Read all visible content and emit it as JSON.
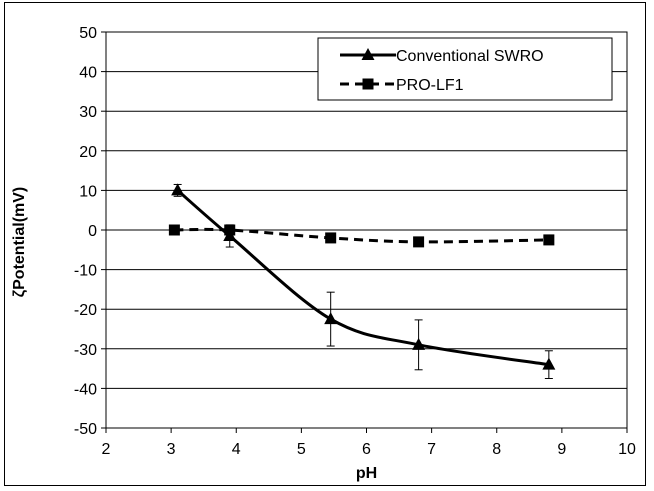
{
  "chart_data": {
    "type": "line",
    "xlabel": "pH",
    "ylabel": "ζPotential(mV)",
    "xlim": [
      2,
      10
    ],
    "ylim": [
      -50,
      50
    ],
    "xticks": [
      2,
      3,
      4,
      5,
      6,
      7,
      8,
      9,
      10
    ],
    "yticks": [
      50,
      40,
      30,
      20,
      10,
      0,
      -10,
      -20,
      -30,
      -40,
      -50
    ],
    "grid": "horizontal",
    "legend_position": "top-right",
    "series": [
      {
        "name": "Conventional SWRO",
        "marker": "triangle",
        "line": "solid",
        "color": "#000000",
        "x": [
          3.1,
          3.9,
          5.45,
          6.8,
          8.8
        ],
        "y": [
          10,
          -1.5,
          -22.5,
          -29,
          -34
        ],
        "error": [
          1.5,
          2.8,
          6.8,
          6.3,
          3.5
        ]
      },
      {
        "name": "PRO-LF1",
        "marker": "square",
        "line": "dashed",
        "color": "#000000",
        "x": [
          3.05,
          3.9,
          5.45,
          6.8,
          8.8
        ],
        "y": [
          0,
          0,
          -2,
          -3,
          -2.5
        ],
        "error": [
          0,
          0,
          0,
          0,
          0
        ]
      }
    ]
  }
}
